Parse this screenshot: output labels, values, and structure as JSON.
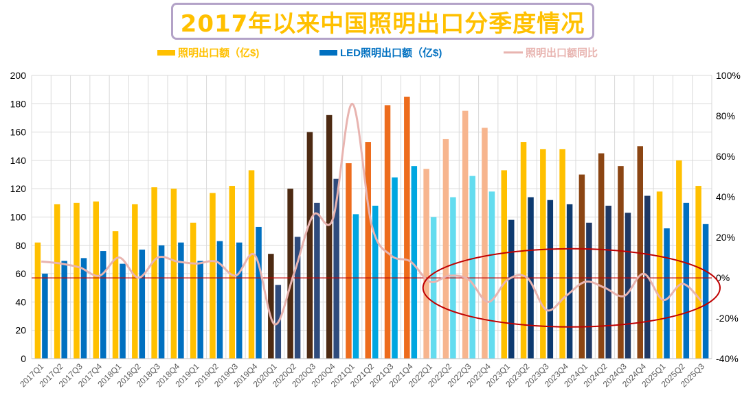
{
  "title": "2017年以来中国照明出口分季度情况",
  "legend": {
    "lighting": "照明出口额（亿$)",
    "led": "LED照明出口额（亿$)",
    "yoy": "照明出口额同比"
  },
  "colors": {
    "lighting_default": "#ffc000",
    "led_default": "#0070c0",
    "yoy_line": "#e8b4b0",
    "ref_line": "#c00000",
    "ellipse": "#c00000",
    "grid": "#d9d9d9"
  },
  "chart_data": {
    "type": "bar",
    "title": "2017年以来中国照明出口分季度情况",
    "categories": [
      "2017Q1",
      "2017Q2",
      "2017Q3",
      "2017Q4",
      "2018Q1",
      "2018Q2",
      "2018Q3",
      "2018Q4",
      "2019Q1",
      "2019Q2",
      "2019Q3",
      "2019Q4",
      "2020Q1",
      "2020Q2",
      "2020Q3",
      "2020Q4",
      "2021Q1",
      "2021Q2",
      "2021Q3",
      "2021Q4",
      "2022Q1",
      "2022Q2",
      "2022Q3",
      "2022Q4",
      "2023Q1",
      "2023Q2",
      "2023Q3",
      "2023Q4",
      "2024Q1",
      "2024Q2",
      "2024Q3",
      "2024Q4",
      "2025Q1",
      "2025Q2",
      "2025Q3"
    ],
    "series": [
      {
        "name": "照明出口额（亿$)",
        "axis": "left",
        "values": [
          82,
          109,
          110,
          111,
          90,
          109,
          121,
          120,
          96,
          117,
          122,
          133,
          74,
          120,
          160,
          172,
          138,
          153,
          179,
          185,
          134,
          155,
          175,
          163,
          133,
          153,
          148,
          148,
          130,
          145,
          136,
          150,
          118,
          140,
          122
        ],
        "colors": [
          "#ffc000",
          "#ffc000",
          "#ffc000",
          "#ffc000",
          "#ffc000",
          "#ffc000",
          "#ffc000",
          "#ffc000",
          "#ffc000",
          "#ffc000",
          "#ffc000",
          "#ffc000",
          "#4d2a12",
          "#4d2a12",
          "#4d2a12",
          "#4d2a12",
          "#ed6c1d",
          "#ed6c1d",
          "#ed6c1d",
          "#ed6c1d",
          "#f7b58e",
          "#f7b58e",
          "#f7b58e",
          "#f7b58e",
          "#ffc000",
          "#ffc000",
          "#ffc000",
          "#ffc000",
          "#8b4513",
          "#8b4513",
          "#8b4513",
          "#8b4513",
          "#ffc000",
          "#ffc000",
          "#ffc000"
        ]
      },
      {
        "name": "LED照明出口额（亿$)",
        "axis": "left",
        "values": [
          60,
          69,
          71,
          76,
          67,
          77,
          80,
          82,
          69,
          83,
          82,
          93,
          52,
          86,
          110,
          127,
          102,
          108,
          128,
          136,
          100,
          114,
          129,
          118,
          98,
          114,
          112,
          109,
          96,
          108,
          103,
          115,
          92,
          110,
          95
        ],
        "colors": [
          "#0070c0",
          "#0070c0",
          "#0070c0",
          "#0070c0",
          "#0070c0",
          "#0070c0",
          "#0070c0",
          "#0070c0",
          "#0070c0",
          "#0070c0",
          "#0070c0",
          "#0070c0",
          "#2f4b7c",
          "#2f4b7c",
          "#2f4b7c",
          "#2f4b7c",
          "#00a6e0",
          "#00a6e0",
          "#00a6e0",
          "#00a6e0",
          "#63dcef",
          "#63dcef",
          "#63dcef",
          "#63dcef",
          "#0d3a70",
          "#0d3a70",
          "#0d3a70",
          "#0d3a70",
          "#1f3864",
          "#1f3864",
          "#1f3864",
          "#1f3864",
          "#0070c0",
          "#0070c0",
          "#0070c0"
        ]
      },
      {
        "name": "照明出口额同比",
        "axis": "right",
        "type": "line",
        "values": [
          8,
          7,
          5,
          1,
          10,
          0,
          10,
          8,
          7,
          8,
          1,
          11,
          -23,
          2,
          31,
          29,
          86,
          26,
          11,
          8,
          -2,
          1,
          -1,
          -12,
          -1,
          0,
          -16,
          -9,
          -2,
          -5,
          -9,
          2,
          -11,
          -3,
          -12
        ]
      }
    ],
    "yleft": {
      "min": 0,
      "max": 200,
      "ticks": [
        0,
        20,
        40,
        60,
        80,
        100,
        120,
        140,
        160,
        180,
        200
      ]
    },
    "yright": {
      "min": -40,
      "max": 100,
      "tick_labels": [
        "-40%",
        "-20%",
        "0%",
        "20%",
        "40%",
        "60%",
        "80%",
        "100%"
      ]
    },
    "reference_line": {
      "axis": "left",
      "value": 57
    },
    "annotation": {
      "type": "ellipse",
      "from_category": "2022Q1",
      "to_category": "2025Q3"
    }
  }
}
